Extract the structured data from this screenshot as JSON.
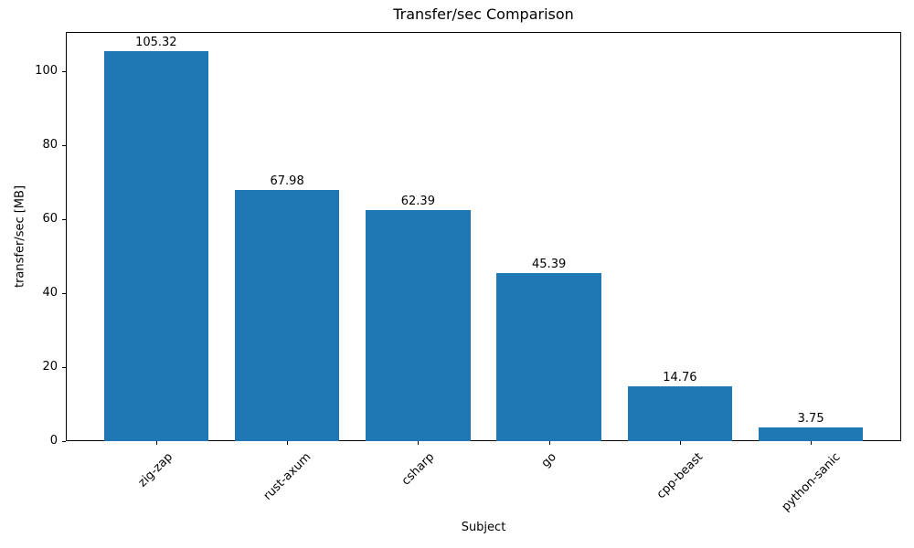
{
  "chart_data": {
    "type": "bar",
    "title": "Transfer/sec Comparison",
    "xlabel": "Subject",
    "ylabel": "transfer/sec [MB]",
    "categories": [
      "zig-zap",
      "rust-axum",
      "csharp",
      "go",
      "cpp-beast",
      "python-sanic"
    ],
    "values": [
      105.32,
      67.98,
      62.39,
      45.39,
      14.76,
      3.75
    ],
    "bar_labels": [
      "105.32",
      "67.98",
      "62.39",
      "45.39",
      "14.76",
      "3.75"
    ],
    "yticks": [
      0,
      20,
      40,
      60,
      80,
      100
    ],
    "ylim": [
      0,
      110.59
    ],
    "bar_color": "#1f77b4",
    "text_color": "#000000",
    "grid": false,
    "legend": null,
    "x_tick_label_rotation_deg": 45
  }
}
